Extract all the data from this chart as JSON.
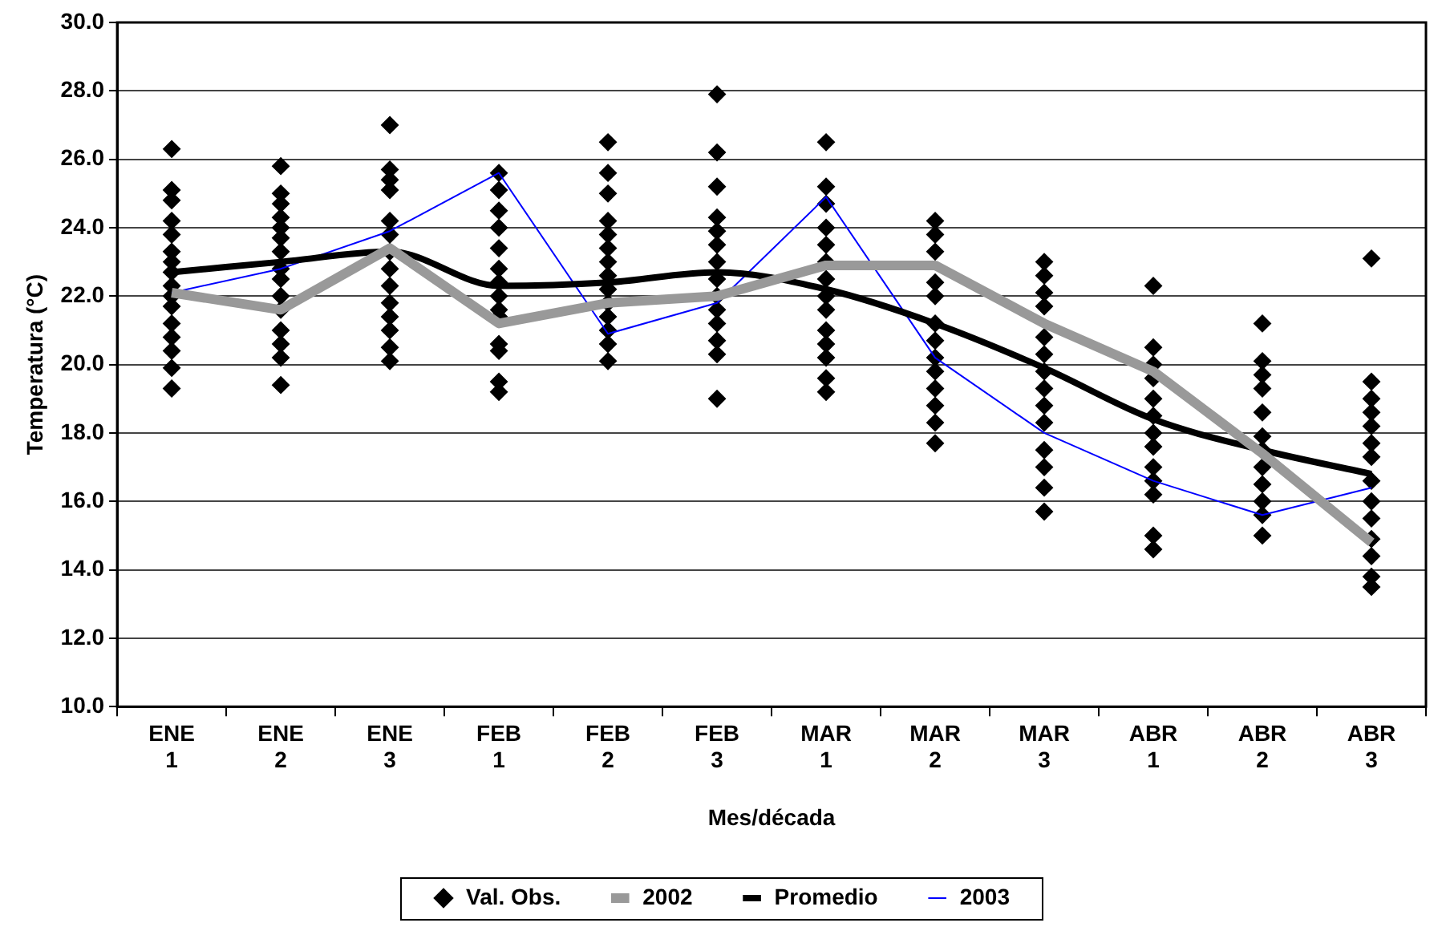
{
  "chart_data": {
    "type": "line",
    "xlabel": "Mes/década",
    "ylabel": "Temperatura (°C)",
    "categories": [
      "ENE 1",
      "ENE 2",
      "ENE 3",
      "FEB 1",
      "FEB 2",
      "FEB 3",
      "MAR 1",
      "MAR 2",
      "MAR 3",
      "ABR 1",
      "ABR 2",
      "ABR 3"
    ],
    "ylim": [
      10,
      30
    ],
    "yticks": [
      {
        "value": 10,
        "label": "10.0"
      },
      {
        "value": 12,
        "label": "12.0"
      },
      {
        "value": 14,
        "label": "14.0"
      },
      {
        "value": 16,
        "label": "16.0"
      },
      {
        "value": 18,
        "label": "18.0"
      },
      {
        "value": 20,
        "label": "20.0"
      },
      {
        "value": 22,
        "label": "22.0"
      },
      {
        "value": 24,
        "label": "24.0"
      },
      {
        "value": 26,
        "label": "26.0"
      },
      {
        "value": 28,
        "label": "28.0"
      },
      {
        "value": 30,
        "label": "30.0"
      }
    ],
    "grid": "y",
    "legend": "bottom",
    "series": [
      {
        "name": "Val. Obs.",
        "type": "scatter",
        "marker": "diamond",
        "color": "#000000",
        "x": [
          "ENE 1",
          "ENE 1",
          "ENE 1",
          "ENE 1",
          "ENE 1",
          "ENE 1",
          "ENE 1",
          "ENE 1",
          "ENE 1",
          "ENE 1",
          "ENE 1",
          "ENE 1",
          "ENE 1",
          "ENE 1",
          "ENE 1",
          "ENE 1",
          "ENE 2",
          "ENE 2",
          "ENE 2",
          "ENE 2",
          "ENE 2",
          "ENE 2",
          "ENE 2",
          "ENE 2",
          "ENE 2",
          "ENE 2",
          "ENE 2",
          "ENE 2",
          "ENE 2",
          "ENE 2",
          "ENE 2",
          "ENE 3",
          "ENE 3",
          "ENE 3",
          "ENE 3",
          "ENE 3",
          "ENE 3",
          "ENE 3",
          "ENE 3",
          "ENE 3",
          "ENE 3",
          "ENE 3",
          "ENE 3",
          "ENE 3",
          "ENE 3",
          "FEB 1",
          "FEB 1",
          "FEB 1",
          "FEB 1",
          "FEB 1",
          "FEB 1",
          "FEB 1",
          "FEB 1",
          "FEB 1",
          "FEB 1",
          "FEB 1",
          "FEB 1",
          "FEB 1",
          "FEB 1",
          "FEB 2",
          "FEB 2",
          "FEB 2",
          "FEB 2",
          "FEB 2",
          "FEB 2",
          "FEB 2",
          "FEB 2",
          "FEB 2",
          "FEB 2",
          "FEB 2",
          "FEB 2",
          "FEB 2",
          "FEB 2",
          "FEB 3",
          "FEB 3",
          "FEB 3",
          "FEB 3",
          "FEB 3",
          "FEB 3",
          "FEB 3",
          "FEB 3",
          "FEB 3",
          "FEB 3",
          "FEB 3",
          "FEB 3",
          "FEB 3",
          "FEB 3",
          "MAR 1",
          "MAR 1",
          "MAR 1",
          "MAR 1",
          "MAR 1",
          "MAR 1",
          "MAR 1",
          "MAR 1",
          "MAR 1",
          "MAR 1",
          "MAR 1",
          "MAR 1",
          "MAR 1",
          "MAR 1",
          "MAR 2",
          "MAR 2",
          "MAR 2",
          "MAR 2",
          "MAR 2",
          "MAR 2",
          "MAR 2",
          "MAR 2",
          "MAR 2",
          "MAR 2",
          "MAR 2",
          "MAR 2",
          "MAR 2",
          "MAR 3",
          "MAR 3",
          "MAR 3",
          "MAR 3",
          "MAR 3",
          "MAR 3",
          "MAR 3",
          "MAR 3",
          "MAR 3",
          "MAR 3",
          "MAR 3",
          "MAR 3",
          "MAR 3",
          "MAR 3",
          "ABR 1",
          "ABR 1",
          "ABR 1",
          "ABR 1",
          "ABR 1",
          "ABR 1",
          "ABR 1",
          "ABR 1",
          "ABR 1",
          "ABR 1",
          "ABR 1",
          "ABR 1",
          "ABR 1",
          "ABR 2",
          "ABR 2",
          "ABR 2",
          "ABR 2",
          "ABR 2",
          "ABR 2",
          "ABR 2",
          "ABR 2",
          "ABR 2",
          "ABR 2",
          "ABR 2",
          "ABR 2",
          "ABR 3",
          "ABR 3",
          "ABR 3",
          "ABR 3",
          "ABR 3",
          "ABR 3",
          "ABR 3",
          "ABR 3",
          "ABR 3",
          "ABR 3",
          "ABR 3",
          "ABR 3",
          "ABR 3",
          "ABR 3"
        ],
        "values": [
          26.3,
          25.1,
          24.8,
          24.2,
          23.8,
          23.3,
          23.0,
          22.7,
          22.3,
          22.0,
          21.7,
          21.2,
          20.8,
          20.4,
          19.9,
          19.3,
          25.8,
          25.0,
          24.7,
          24.3,
          24.0,
          23.7,
          23.3,
          22.8,
          22.5,
          22.0,
          21.6,
          21.0,
          20.6,
          20.2,
          19.4,
          27.0,
          25.7,
          25.4,
          25.1,
          24.2,
          23.8,
          23.3,
          22.8,
          22.3,
          21.8,
          21.4,
          21.0,
          20.5,
          20.1,
          25.6,
          25.1,
          24.5,
          24.0,
          23.4,
          22.8,
          22.4,
          22.0,
          21.6,
          21.4,
          20.6,
          20.4,
          19.5,
          19.2,
          26.5,
          25.6,
          25.0,
          24.2,
          23.8,
          23.4,
          23.0,
          22.6,
          22.2,
          21.8,
          21.4,
          21.0,
          20.6,
          20.1,
          27.9,
          26.2,
          25.2,
          24.3,
          23.9,
          23.5,
          23.0,
          22.5,
          22.0,
          21.6,
          21.2,
          20.7,
          20.3,
          19.0,
          26.5,
          25.2,
          24.7,
          24.0,
          23.5,
          23.0,
          22.5,
          22.0,
          21.6,
          21.0,
          20.6,
          20.2,
          19.6,
          19.2,
          24.2,
          23.8,
          23.3,
          22.4,
          22.0,
          21.2,
          20.7,
          20.2,
          19.8,
          19.3,
          18.8,
          18.3,
          17.7,
          23.0,
          22.6,
          22.1,
          21.7,
          20.8,
          20.3,
          19.8,
          19.3,
          18.8,
          18.3,
          17.5,
          17.0,
          16.4,
          15.7,
          22.3,
          20.5,
          20.0,
          19.6,
          19.0,
          18.5,
          18.0,
          17.6,
          17.0,
          16.6,
          16.2,
          15.0,
          14.6,
          21.2,
          20.1,
          19.7,
          19.3,
          18.6,
          17.9,
          17.5,
          17.0,
          16.5,
          16.0,
          15.6,
          15.0,
          23.1,
          19.5,
          19.0,
          18.6,
          18.2,
          17.7,
          17.3,
          16.6,
          16.0,
          15.5,
          14.9,
          14.4,
          13.8,
          13.5
        ]
      },
      {
        "name": "2002",
        "type": "line",
        "color": "#999999",
        "marker": "none",
        "values": [
          22.1,
          21.6,
          23.4,
          21.2,
          21.8,
          22.0,
          22.9,
          22.9,
          21.2,
          19.8,
          17.4,
          14.8
        ]
      },
      {
        "name": "Promedio",
        "type": "line",
        "color": "#000000",
        "marker": "none",
        "values": [
          22.7,
          23.0,
          23.3,
          22.3,
          22.4,
          22.7,
          22.2,
          21.2,
          19.9,
          18.4,
          17.5,
          16.8
        ]
      },
      {
        "name": "2003",
        "type": "line",
        "color": "#0000ff",
        "marker": "none",
        "values": [
          22.1,
          22.8,
          23.9,
          25.6,
          20.9,
          21.8,
          24.9,
          20.2,
          18.0,
          16.6,
          15.6,
          16.4
        ]
      }
    ]
  }
}
